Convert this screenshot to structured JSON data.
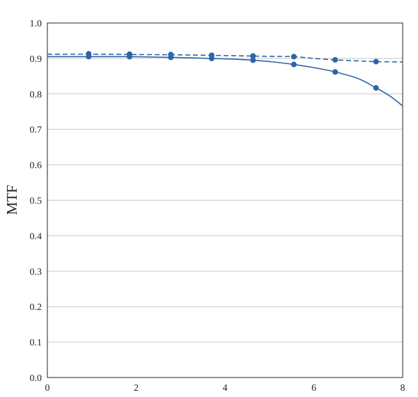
{
  "chart_data": {
    "type": "line",
    "title": "",
    "xlabel": "",
    "ylabel": "MTF",
    "xlim": [
      0,
      8
    ],
    "ylim": [
      0.0,
      1.0
    ],
    "xticks": [
      "0",
      "2",
      "4",
      "6",
      "8"
    ],
    "yticks": [
      "0.0",
      "0.1",
      "0.2",
      "0.3",
      "0.4",
      "0.5",
      "0.6",
      "0.7",
      "0.8",
      "0.9",
      "1.0"
    ],
    "grid": "horizontal",
    "legend": "none",
    "series_color": "#2e64a8",
    "series": [
      {
        "style": "dashed",
        "x": [
          0.93,
          1.85,
          2.78,
          3.7,
          4.63,
          5.55,
          6.48,
          7.4
        ],
        "y": [
          0.913,
          0.912,
          0.911,
          0.909,
          0.907,
          0.905,
          0.896,
          0.891
        ],
        "curve_x": [
          0,
          1,
          2,
          3,
          4,
          5,
          5.55,
          6,
          6.48,
          7,
          7.4,
          8
        ],
        "curve_y": [
          0.912,
          0.912,
          0.911,
          0.91,
          0.908,
          0.906,
          0.905,
          0.9,
          0.896,
          0.893,
          0.891,
          0.89
        ]
      },
      {
        "style": "solid",
        "x": [
          0.93,
          1.85,
          2.78,
          3.7,
          4.63,
          5.55,
          6.48,
          7.4
        ],
        "y": [
          0.905,
          0.905,
          0.903,
          0.9,
          0.895,
          0.883,
          0.862,
          0.817
        ],
        "curve_x": [
          0,
          0.93,
          1.85,
          2.78,
          3.7,
          4.2,
          4.63,
          5.1,
          5.55,
          6.0,
          6.48,
          7.0,
          7.4,
          7.7,
          8.0
        ],
        "curve_y": [
          0.905,
          0.905,
          0.905,
          0.903,
          0.9,
          0.898,
          0.895,
          0.89,
          0.883,
          0.874,
          0.862,
          0.843,
          0.817,
          0.795,
          0.766
        ]
      }
    ]
  }
}
